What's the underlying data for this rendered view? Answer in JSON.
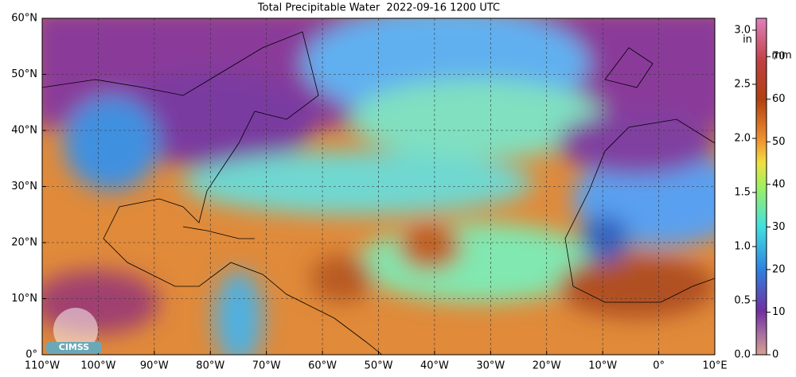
{
  "header": {
    "title": "Total Precipitable Water  2022-09-16 1200 UTC"
  },
  "map": {
    "lat_labels": [
      "0°",
      "10°N",
      "20°N",
      "30°N",
      "40°N",
      "50°N",
      "60°N"
    ],
    "lon_labels": [
      "110°W",
      "100°W",
      "90°W",
      "80°W",
      "70°W",
      "60°W",
      "50°W",
      "40°W",
      "30°W",
      "20°W",
      "10°W",
      "0°",
      "10°E"
    ],
    "logo": "CIMSS"
  },
  "colorbar": {
    "in_unit": "in",
    "mm_unit": "mm",
    "in_lim": [
      0,
      3.11
    ],
    "mm_lim": [
      0,
      79
    ],
    "in_ticks": [
      {
        "value": 0,
        "label": "0.0"
      },
      0.5,
      {
        "value": 1,
        "label": "1.0"
      },
      1.5,
      {
        "value": 2,
        "label": "2.0"
      },
      2.5,
      {
        "value": 3,
        "label": "3.0"
      }
    ],
    "mm_ticks": [
      0,
      10,
      20,
      30,
      40,
      50,
      60,
      70
    ]
  }
}
